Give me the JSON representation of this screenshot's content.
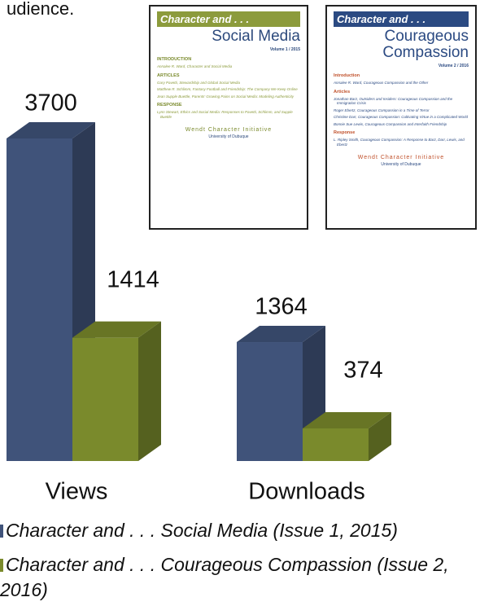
{
  "chart_data": {
    "type": "bar3d",
    "annotation": "udience.",
    "categories": [
      "Views",
      "Downloads"
    ],
    "series": [
      {
        "name": "Character and . . . Social Media (Issue 1, 2015)",
        "color": "#40537a",
        "values": [
          3700,
          1364
        ]
      },
      {
        "name": "Character and . . . Courageous Compassion (Issue 2, 2016)",
        "color": "#7a8a2c",
        "values": [
          1414,
          374
        ]
      }
    ],
    "legend": "bottom"
  },
  "covers": [
    {
      "header": "Character and . . .",
      "title": "Social Media",
      "volume": "Volume 1 / 2015",
      "sections": [
        {
          "heading": "INTRODUCTION",
          "items": [
            "Annalee R. Ward, Character and Social Media"
          ]
        },
        {
          "heading": "ARTICLES",
          "items": [
            "Gary Pavetti, Stewardship and Global Social Media",
            "Matthew R. Schlimm, Fantasy Football and Friendship: The Company We Keep Online",
            "Jean Supple Buettle, Parents' Growing Pains on Social Media: Modeling Authenticity"
          ]
        },
        {
          "heading": "RESPONSE",
          "items": [
            "Lynn Stewart, Ethics and Social Media: Responses to Pavetti, Schlimm, and Supple Buettle"
          ]
        }
      ],
      "org": "Wendt Character Initiative",
      "university": "University of Dubuque"
    },
    {
      "header": "Character and . . .",
      "title": "Courageous Compassion",
      "volume": "Volume 2 / 2016",
      "sections": [
        {
          "heading": "Introduction",
          "items": [
            "Annalee R. Ward, Courageous Compassion and the Other"
          ]
        },
        {
          "heading": "Articles",
          "items": [
            "Jonathan Barz, Outsiders and Insiders: Courageous Compassion and the Immigration Crisis",
            "Roger Ebertz, Courageous Compassion in a Time of Terror",
            "Christine Darr, Courageous Compassion: Cultivating Virtue in a Complicated World",
            "Bonnie Sue Lewis, Courageous Compassion and Interfaith Friendship"
          ]
        },
        {
          "heading": "Response",
          "items": [
            "L. Ripley Smith, Courageous Compassion: A Response to Barz, Darr, Lewis, and Ebertz"
          ]
        }
      ],
      "org": "Wendt Character Initiative",
      "university": "University of Dubuque"
    }
  ]
}
